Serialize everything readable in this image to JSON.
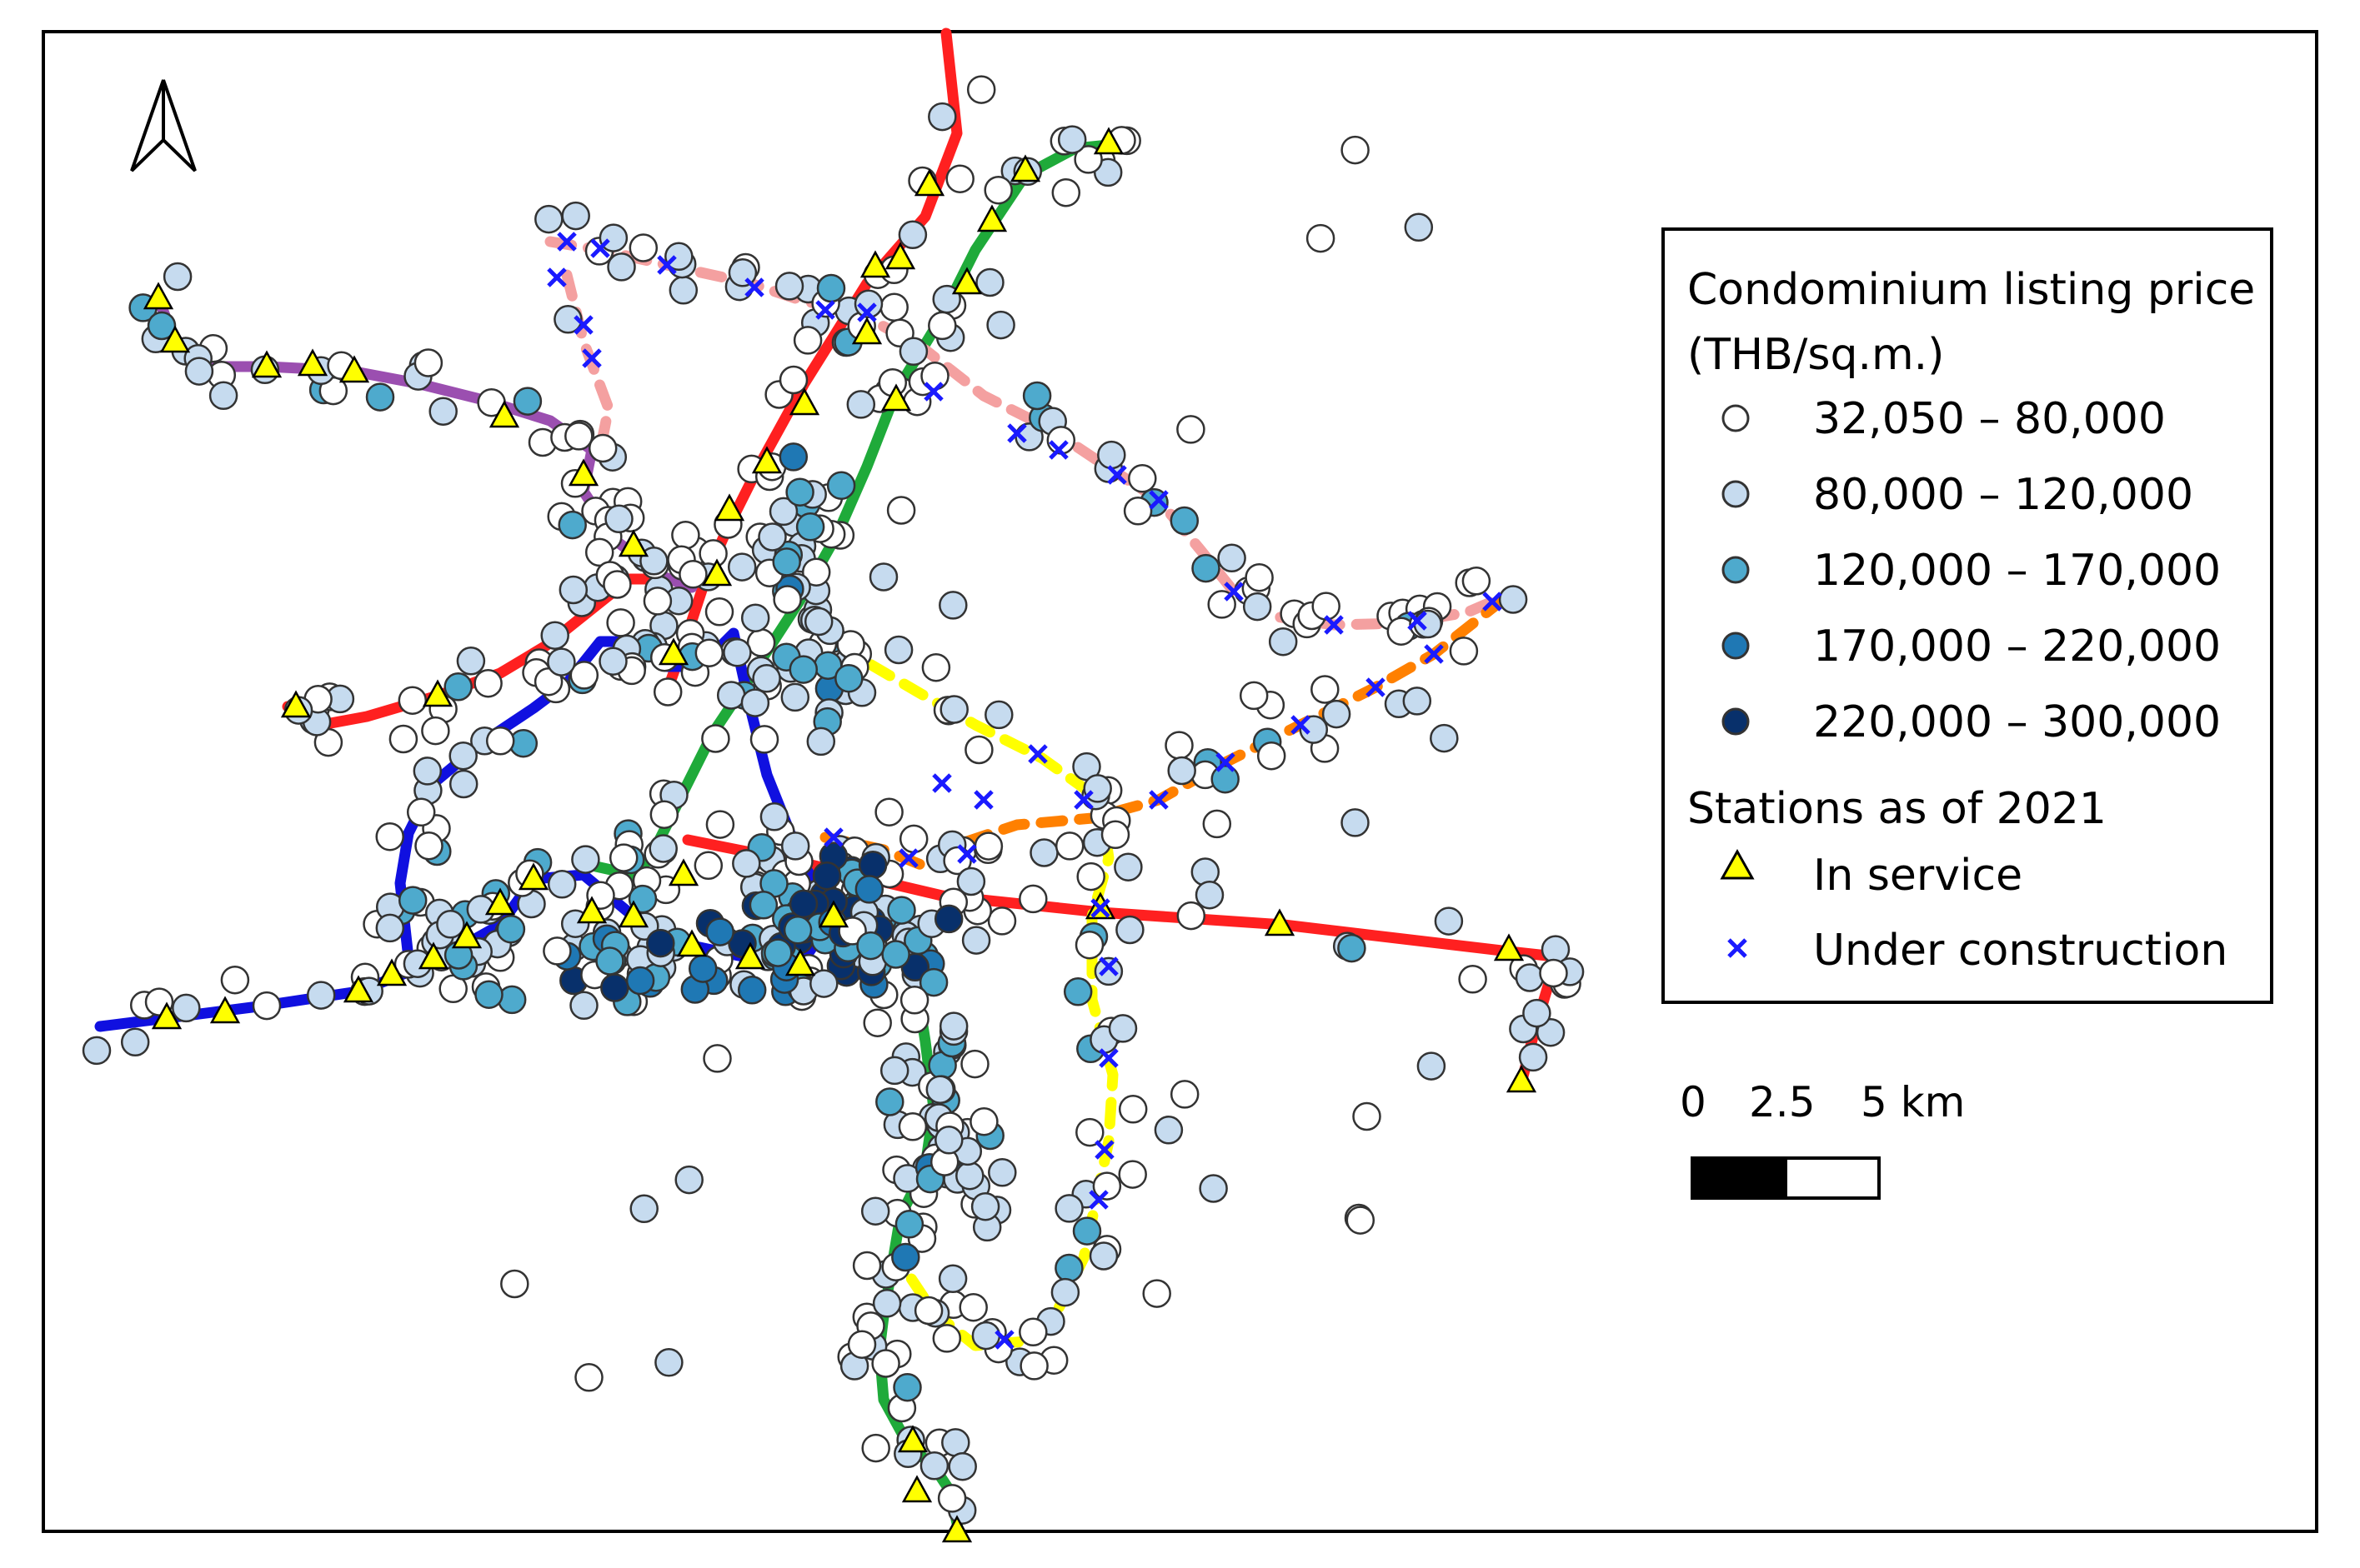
{
  "legend": {
    "price_title_line1": "Condominium listing price",
    "price_title_line2": "(THB/sq.m.)",
    "classes": [
      {
        "label": "32,050 – 80,000",
        "color": "#ffffff"
      },
      {
        "label": "80,000 – 120,000",
        "color": "#c6dbef"
      },
      {
        "label": "120,000 – 170,000",
        "color": "#4eaacd"
      },
      {
        "label": "170,000 – 220,000",
        "color": "#1f78b4"
      },
      {
        "label": "220,000 – 300,000",
        "color": "#08306b"
      }
    ],
    "stations_title": "Stations as of 2021",
    "in_service_label": "In service",
    "under_construction_label": "Under construction"
  },
  "scale_bar": {
    "labels": [
      "0",
      "2.5",
      "5 km"
    ]
  },
  "north_arrow": {
    "icon": "north-arrow-icon"
  },
  "colors": {
    "red_line": "#ff2020",
    "green_line": "#1faa3a",
    "blue_line": "#1010e0",
    "purple_line": "#9b4fb0",
    "pink_line": "#f4a0a0",
    "yellow_line": "#ffff00",
    "orange_line": "#ff8000",
    "station_fill": "#ffff00",
    "construction_marker": "#1a1aff"
  }
}
